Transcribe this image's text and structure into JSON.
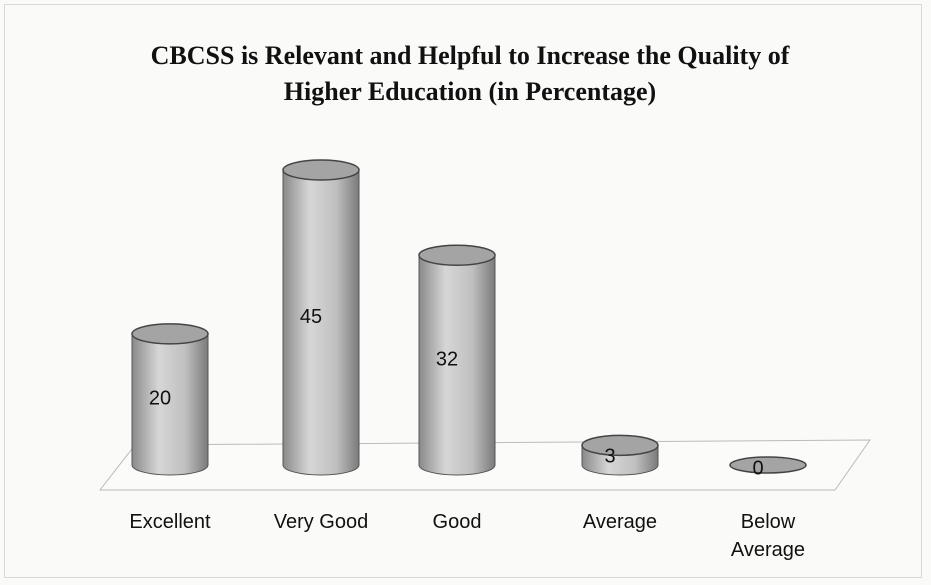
{
  "chart_data": {
    "type": "bar",
    "title": "CBCSS is Relevant and Helpful to Increase the Quality of Higher Education (in Percentage)",
    "categories": [
      "Excellent",
      "Very Good",
      "Good",
      "Average",
      "Below Average"
    ],
    "values": [
      20,
      45,
      32,
      3,
      0
    ],
    "color": "#c4c4c4"
  }
}
